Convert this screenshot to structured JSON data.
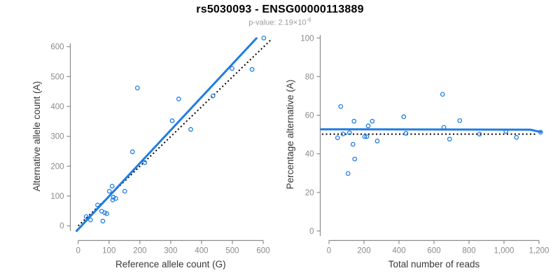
{
  "header": {
    "title": "rs5030093 - ENSG00000113889",
    "subtitle_prefix": "p-value: 2.19×10",
    "subtitle_exponent": "-6"
  },
  "colors": {
    "accent_blue": "#1e7ce2",
    "identity_black": "#000000",
    "axis_gray": "#8c8c8c",
    "tick_text_gray": "#8a8a8a",
    "axis_title_dark": "#383838"
  },
  "chart_data": [
    {
      "type": "scatter",
      "name": "allele-count-scatter",
      "xlabel": "Reference allele count (G)",
      "ylabel": "Alternative allele count (A)",
      "xlim": [
        0,
        600
      ],
      "ylim": [
        0,
        600
      ],
      "grid": false,
      "legend": "none",
      "xticks": [
        0,
        100,
        200,
        300,
        400,
        500,
        600
      ],
      "xtick_labels": [
        "0",
        "100",
        "200",
        "300",
        "400",
        "500",
        "600"
      ],
      "yticks": [
        0,
        100,
        200,
        300,
        400,
        500,
        600
      ],
      "ytick_labels": [
        "0",
        "100",
        "200",
        "300",
        "400",
        "500",
        "600"
      ],
      "points": [
        [
          26,
          31
        ],
        [
          40,
          20
        ],
        [
          63,
          70
        ],
        [
          76,
          49
        ],
        [
          80,
          16
        ],
        [
          86,
          44
        ],
        [
          93,
          41
        ],
        [
          101,
          116
        ],
        [
          110,
          133
        ],
        [
          112,
          87
        ],
        [
          114,
          96
        ],
        [
          122,
          92
        ],
        [
          151,
          116
        ],
        [
          176,
          248
        ],
        [
          192,
          462
        ],
        [
          216,
          212
        ],
        [
          305,
          352
        ],
        [
          326,
          425
        ],
        [
          365,
          323
        ],
        [
          437,
          435
        ],
        [
          499,
          527
        ],
        [
          564,
          524
        ],
        [
          602,
          629
        ]
      ],
      "fit_line": [
        [
          -5,
          -17
        ],
        [
          578,
          628
        ]
      ],
      "identity_line": [
        [
          0,
          0
        ],
        [
          625,
          623
        ]
      ]
    },
    {
      "type": "scatter",
      "name": "percentage-reads-scatter",
      "xlabel": "Total number of reads",
      "ylabel": "Percentage alternative (A)",
      "xlim": [
        0,
        1200
      ],
      "ylim": [
        0,
        100
      ],
      "grid": false,
      "legend": "none",
      "xticks": [
        0,
        200,
        400,
        600,
        800,
        1000,
        1200
      ],
      "xtick_labels": [
        "0",
        "200",
        "400",
        "600",
        "800",
        "1,000",
        "1,200"
      ],
      "yticks": [
        0,
        20,
        40,
        60,
        80,
        100
      ],
      "ytick_labels": [
        "0",
        "20",
        "40",
        "60",
        "80",
        "100"
      ],
      "points": [
        [
          49,
          48.3
        ],
        [
          67,
          64.5
        ],
        [
          80,
          50.3
        ],
        [
          109,
          29.8
        ],
        [
          117,
          50.9
        ],
        [
          137,
          44.9
        ],
        [
          143,
          56.9
        ],
        [
          147,
          37.3
        ],
        [
          204,
          48.9
        ],
        [
          216,
          48.9
        ],
        [
          224,
          54.5
        ],
        [
          247,
          56.9
        ],
        [
          276,
          46.6
        ],
        [
          427,
          59.2
        ],
        [
          440,
          50.6
        ],
        [
          649,
          70.8
        ],
        [
          656,
          53.7
        ],
        [
          689,
          47.6
        ],
        [
          747,
          57.2
        ],
        [
          860,
          50.2
        ],
        [
          1011,
          51.6
        ],
        [
          1071,
          48.5
        ],
        [
          1209,
          51.2
        ]
      ],
      "fit_line": [
        [
          -45,
          52.7
        ],
        [
          1150,
          52.5
        ],
        [
          1211,
          51.3
        ]
      ],
      "identity_line": [
        [
          -40,
          50.2
        ],
        [
          1185,
          50.2
        ]
      ]
    }
  ]
}
